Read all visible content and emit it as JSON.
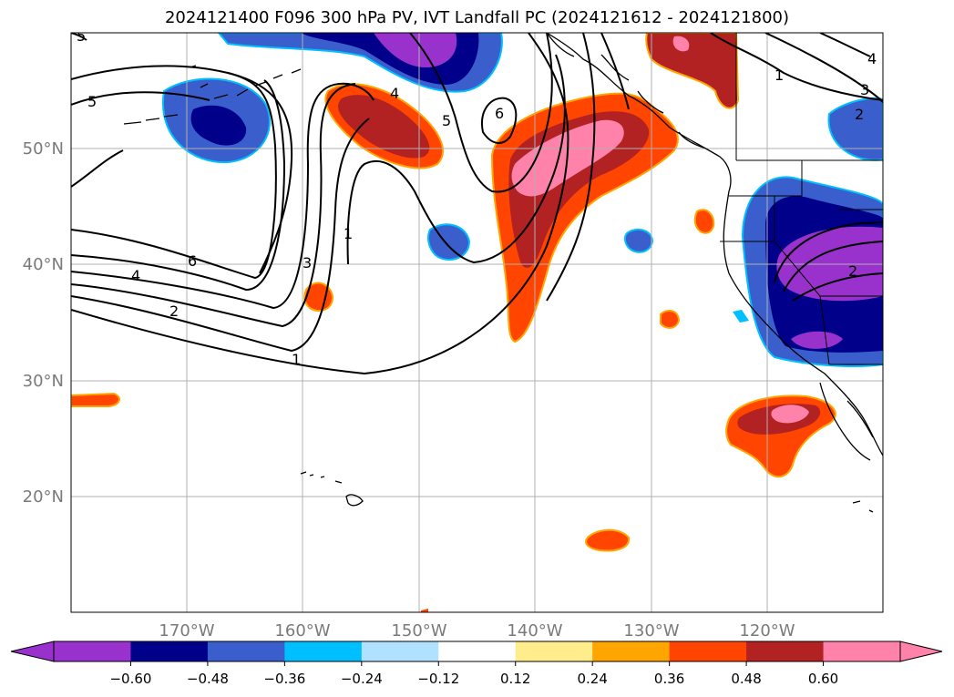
{
  "title": "2024121400 F096 300 hPa PV, IVT Landfall PC (2024121612 - 2024121800)",
  "map": {
    "lon_labels": [
      "170°W",
      "160°W",
      "150°W",
      "140°W",
      "130°W",
      "120°W"
    ],
    "lat_labels": [
      "50°N",
      "40°N",
      "30°N",
      "20°N"
    ],
    "label_color": "#7a7a7a",
    "gridline_color": "#b0b0b0",
    "contour_labels": [
      "5",
      "5",
      "4",
      "5",
      "6",
      "1",
      "3",
      "6",
      "4",
      "2",
      "1",
      "1",
      "3",
      "2",
      "4",
      "2"
    ]
  },
  "colorbar": {
    "tick_labels": [
      "−0.60",
      "−0.48",
      "−0.36",
      "−0.24",
      "−0.12",
      "0.12",
      "0.24",
      "0.36",
      "0.48",
      "0.60"
    ],
    "colors": [
      "#9932cc",
      "#00008b",
      "#3a5fcd",
      "#00bfff",
      "#b0e2ff",
      "#ffffff",
      "#ffec8b",
      "#ffa500",
      "#ff4500",
      "#b22222",
      "#ff82ab"
    ]
  }
}
